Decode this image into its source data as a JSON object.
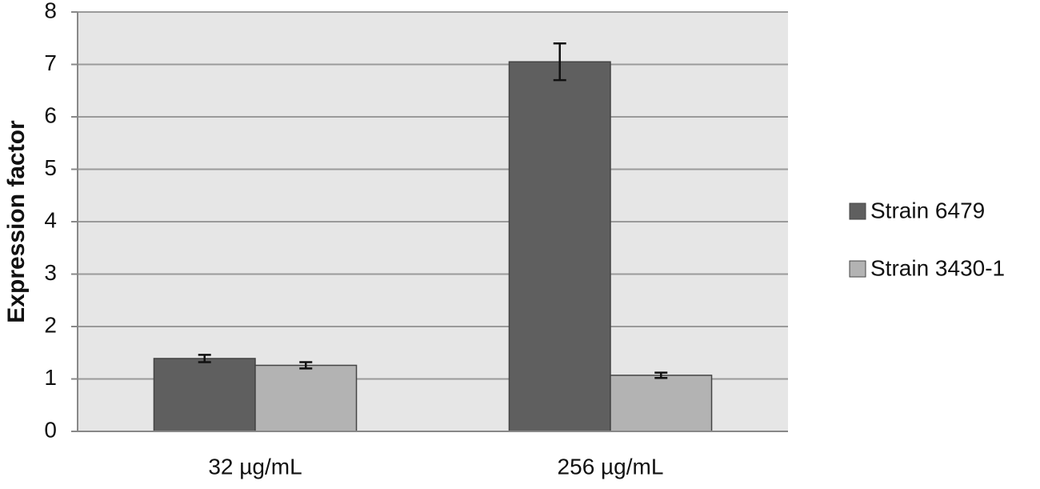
{
  "chart_data": {
    "type": "bar",
    "y_label": "Expression factor",
    "categories": [
      "32  µg/mL",
      "256  µg/mL"
    ],
    "series": [
      {
        "name": "Strain 6479",
        "color": "#5f5f5f",
        "values": [
          1.39,
          7.05
        ],
        "errors": [
          0.07,
          0.35
        ]
      },
      {
        "name": "Strain 3430-1",
        "color": "#b3b3b3",
        "values": [
          1.26,
          1.07
        ],
        "errors": [
          0.06,
          0.05
        ]
      }
    ],
    "ylim": [
      0,
      8
    ],
    "yticks": [
      0,
      1,
      2,
      3,
      4,
      5,
      6,
      7,
      8
    ],
    "grid": true,
    "legend": "right"
  }
}
